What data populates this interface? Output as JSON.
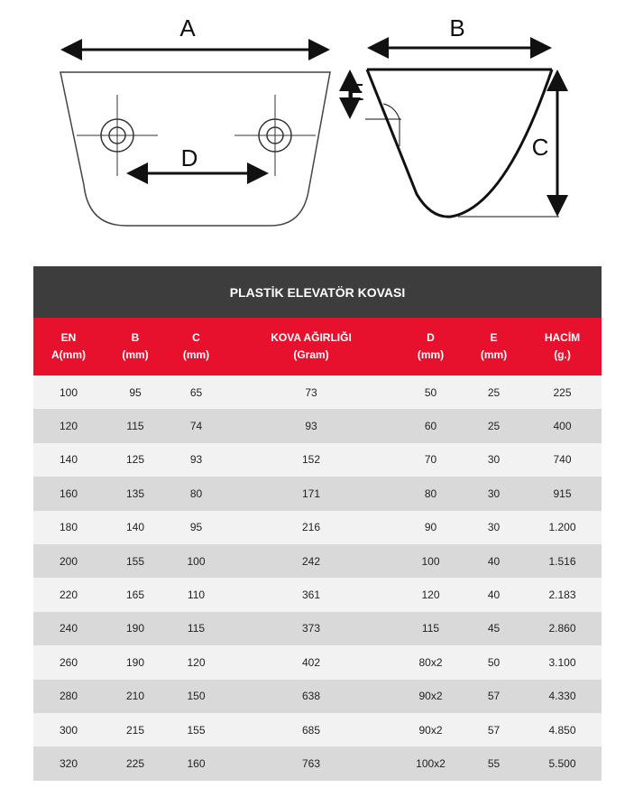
{
  "diagram": {
    "labels": {
      "a": "A",
      "b": "B",
      "c": "C",
      "d": "D",
      "e": "E"
    }
  },
  "table": {
    "title": "PLASTİK ELEVATÖR KOVASI",
    "headers": [
      [
        "EN",
        "A(mm)"
      ],
      [
        "B",
        "(mm)"
      ],
      [
        "C",
        "(mm)"
      ],
      [
        "KOVA AĞIRLIĞI",
        "(Gram)"
      ],
      [
        "D",
        "(mm)"
      ],
      [
        "E",
        "(mm)"
      ],
      [
        "HACİM",
        "(g.)"
      ]
    ],
    "rows": [
      [
        "100",
        "95",
        "65",
        "73",
        "50",
        "25",
        "225"
      ],
      [
        "120",
        "115",
        "74",
        "93",
        "60",
        "25",
        "400"
      ],
      [
        "140",
        "125",
        "93",
        "152",
        "70",
        "30",
        "740"
      ],
      [
        "160",
        "135",
        "80",
        "171",
        "80",
        "30",
        "915"
      ],
      [
        "180",
        "140",
        "95",
        "216",
        "90",
        "30",
        "1.200"
      ],
      [
        "200",
        "155",
        "100",
        "242",
        "100",
        "40",
        "1.516"
      ],
      [
        "220",
        "165",
        "110",
        "361",
        "120",
        "40",
        "2.183"
      ],
      [
        "240",
        "190",
        "115",
        "373",
        "115",
        "45",
        "2.860"
      ],
      [
        "260",
        "190",
        "120",
        "402",
        "80x2",
        "50",
        "3.100"
      ],
      [
        "280",
        "210",
        "150",
        "638",
        "90x2",
        "57",
        "4.330"
      ],
      [
        "300",
        "215",
        "155",
        "685",
        "90x2",
        "57",
        "4.850"
      ],
      [
        "320",
        "225",
        "160",
        "763",
        "100x2",
        "55",
        "5.500"
      ]
    ]
  }
}
